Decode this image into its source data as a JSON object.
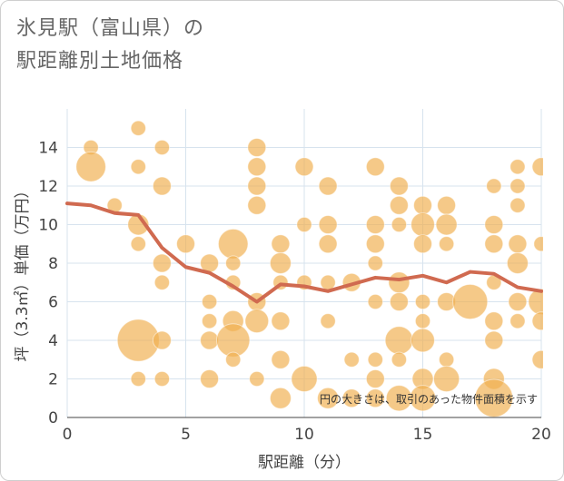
{
  "chart_data": {
    "type": "scatter",
    "title_lines": [
      "氷見駅（富山県）の",
      "駅距離別土地価格"
    ],
    "xlabel": "駅距離（分）",
    "ylabel": "坪（3.3㎡）単価（万円）",
    "xlim": [
      0,
      20
    ],
    "ylim": [
      0,
      16
    ],
    "x_ticks": [
      0,
      5,
      10,
      15,
      20
    ],
    "y_ticks": [
      0,
      2,
      4,
      6,
      8,
      10,
      12,
      14
    ],
    "annotation": "円の大きさは、取引のあった物件面積を示す",
    "colors": {
      "bubble": "#f0b050",
      "trend": "#d06a50",
      "grid": "#d7e3ee"
    },
    "bubbles": [
      {
        "x": 1,
        "y": 14,
        "s": 1
      },
      {
        "x": 1,
        "y": 13,
        "s": 4
      },
      {
        "x": 2,
        "y": 11,
        "s": 1
      },
      {
        "x": 3,
        "y": 15,
        "s": 1
      },
      {
        "x": 3,
        "y": 13,
        "s": 1
      },
      {
        "x": 3,
        "y": 10,
        "s": 2
      },
      {
        "x": 3,
        "y": 9,
        "s": 1
      },
      {
        "x": 3,
        "y": 4,
        "s": 8
      },
      {
        "x": 3,
        "y": 2,
        "s": 1
      },
      {
        "x": 4,
        "y": 14,
        "s": 1
      },
      {
        "x": 4,
        "y": 12,
        "s": 1.5
      },
      {
        "x": 4,
        "y": 8,
        "s": 1.5
      },
      {
        "x": 4,
        "y": 7,
        "s": 1
      },
      {
        "x": 4,
        "y": 4,
        "s": 1.5
      },
      {
        "x": 4,
        "y": 2,
        "s": 1
      },
      {
        "x": 5,
        "y": 9,
        "s": 1.5
      },
      {
        "x": 6,
        "y": 8,
        "s": 1.5
      },
      {
        "x": 6,
        "y": 6,
        "s": 1
      },
      {
        "x": 6,
        "y": 5,
        "s": 1
      },
      {
        "x": 6,
        "y": 4,
        "s": 1.5
      },
      {
        "x": 6,
        "y": 2,
        "s": 1.5
      },
      {
        "x": 7,
        "y": 9,
        "s": 4
      },
      {
        "x": 7,
        "y": 8,
        "s": 1
      },
      {
        "x": 7,
        "y": 7,
        "s": 1
      },
      {
        "x": 7,
        "y": 5,
        "s": 2
      },
      {
        "x": 7,
        "y": 4,
        "s": 5
      },
      {
        "x": 7,
        "y": 3,
        "s": 1
      },
      {
        "x": 8,
        "y": 14,
        "s": 1.5
      },
      {
        "x": 8,
        "y": 13,
        "s": 1.5
      },
      {
        "x": 8,
        "y": 12,
        "s": 1.5
      },
      {
        "x": 8,
        "y": 11,
        "s": 1.5
      },
      {
        "x": 8,
        "y": 6,
        "s": 1.5
      },
      {
        "x": 8,
        "y": 5,
        "s": 2.5
      },
      {
        "x": 8,
        "y": 2,
        "s": 1
      },
      {
        "x": 9,
        "y": 9,
        "s": 1.5
      },
      {
        "x": 9,
        "y": 8,
        "s": 2
      },
      {
        "x": 9,
        "y": 7,
        "s": 1
      },
      {
        "x": 9,
        "y": 5,
        "s": 1.5
      },
      {
        "x": 9,
        "y": 3,
        "s": 1.5
      },
      {
        "x": 9,
        "y": 1,
        "s": 2
      },
      {
        "x": 10,
        "y": 13,
        "s": 1.5
      },
      {
        "x": 10,
        "y": 10,
        "s": 1
      },
      {
        "x": 10,
        "y": 7,
        "s": 1
      },
      {
        "x": 10,
        "y": 2,
        "s": 3
      },
      {
        "x": 11,
        "y": 12,
        "s": 1.5
      },
      {
        "x": 11,
        "y": 10,
        "s": 1.5
      },
      {
        "x": 11,
        "y": 9,
        "s": 1.5
      },
      {
        "x": 11,
        "y": 7,
        "s": 1
      },
      {
        "x": 11,
        "y": 5,
        "s": 1
      },
      {
        "x": 11,
        "y": 1,
        "s": 2
      },
      {
        "x": 12,
        "y": 7,
        "s": 1.5
      },
      {
        "x": 12,
        "y": 3,
        "s": 1
      },
      {
        "x": 12,
        "y": 1,
        "s": 1.5
      },
      {
        "x": 13,
        "y": 13,
        "s": 1.5
      },
      {
        "x": 13,
        "y": 10,
        "s": 1.5
      },
      {
        "x": 13,
        "y": 9,
        "s": 1.5
      },
      {
        "x": 13,
        "y": 8,
        "s": 1
      },
      {
        "x": 13,
        "y": 6,
        "s": 1
      },
      {
        "x": 13,
        "y": 3,
        "s": 1
      },
      {
        "x": 13,
        "y": 2,
        "s": 1.5
      },
      {
        "x": 13,
        "y": 1,
        "s": 1.5
      },
      {
        "x": 14,
        "y": 12,
        "s": 1.5
      },
      {
        "x": 14,
        "y": 11,
        "s": 1.5
      },
      {
        "x": 14,
        "y": 10,
        "s": 1
      },
      {
        "x": 14,
        "y": 7,
        "s": 2
      },
      {
        "x": 14,
        "y": 6,
        "s": 1.5
      },
      {
        "x": 14,
        "y": 4,
        "s": 3.5
      },
      {
        "x": 14,
        "y": 3,
        "s": 1
      },
      {
        "x": 14,
        "y": 1,
        "s": 3
      },
      {
        "x": 15,
        "y": 11,
        "s": 1.5
      },
      {
        "x": 15,
        "y": 10,
        "s": 2.5
      },
      {
        "x": 15,
        "y": 9,
        "s": 1.5
      },
      {
        "x": 15,
        "y": 6,
        "s": 1
      },
      {
        "x": 15,
        "y": 5,
        "s": 1
      },
      {
        "x": 15,
        "y": 4,
        "s": 2.5
      },
      {
        "x": 15,
        "y": 2,
        "s": 2
      },
      {
        "x": 15,
        "y": 1,
        "s": 3
      },
      {
        "x": 16,
        "y": 11,
        "s": 1.5
      },
      {
        "x": 16,
        "y": 10,
        "s": 2
      },
      {
        "x": 16,
        "y": 9,
        "s": 1
      },
      {
        "x": 16,
        "y": 6,
        "s": 1.5
      },
      {
        "x": 16,
        "y": 3,
        "s": 1
      },
      {
        "x": 16,
        "y": 2,
        "s": 3
      },
      {
        "x": 17,
        "y": 6,
        "s": 5.5
      },
      {
        "x": 18,
        "y": 12,
        "s": 1
      },
      {
        "x": 18,
        "y": 10,
        "s": 1.5
      },
      {
        "x": 18,
        "y": 9,
        "s": 1.5
      },
      {
        "x": 18,
        "y": 7,
        "s": 1
      },
      {
        "x": 18,
        "y": 5,
        "s": 1.5
      },
      {
        "x": 18,
        "y": 4,
        "s": 1.5
      },
      {
        "x": 18,
        "y": 2,
        "s": 2
      },
      {
        "x": 18,
        "y": 1,
        "s": 6.5
      },
      {
        "x": 19,
        "y": 13,
        "s": 1
      },
      {
        "x": 19,
        "y": 12,
        "s": 1
      },
      {
        "x": 19,
        "y": 11,
        "s": 1
      },
      {
        "x": 19,
        "y": 9,
        "s": 1.5
      },
      {
        "x": 19,
        "y": 8,
        "s": 2
      },
      {
        "x": 19,
        "y": 6,
        "s": 1.5
      },
      {
        "x": 19,
        "y": 5,
        "s": 1
      },
      {
        "x": 20,
        "y": 13,
        "s": 1.5
      },
      {
        "x": 20,
        "y": 9,
        "s": 1
      },
      {
        "x": 20,
        "y": 6,
        "s": 3
      },
      {
        "x": 20,
        "y": 5,
        "s": 1.5
      },
      {
        "x": 20,
        "y": 3,
        "s": 1.5
      }
    ],
    "series": [
      {
        "name": "trend",
        "x": [
          0,
          1,
          2,
          3,
          4,
          5,
          6,
          7,
          8,
          9,
          10,
          11,
          12,
          13,
          14,
          15,
          16,
          17,
          18,
          19,
          20
        ],
        "y": [
          11.1,
          11.0,
          10.6,
          10.5,
          8.8,
          7.8,
          7.5,
          6.8,
          6.0,
          6.9,
          6.8,
          6.55,
          6.9,
          7.25,
          7.15,
          7.35,
          7.0,
          7.55,
          7.45,
          6.75,
          6.55
        ]
      }
    ]
  }
}
